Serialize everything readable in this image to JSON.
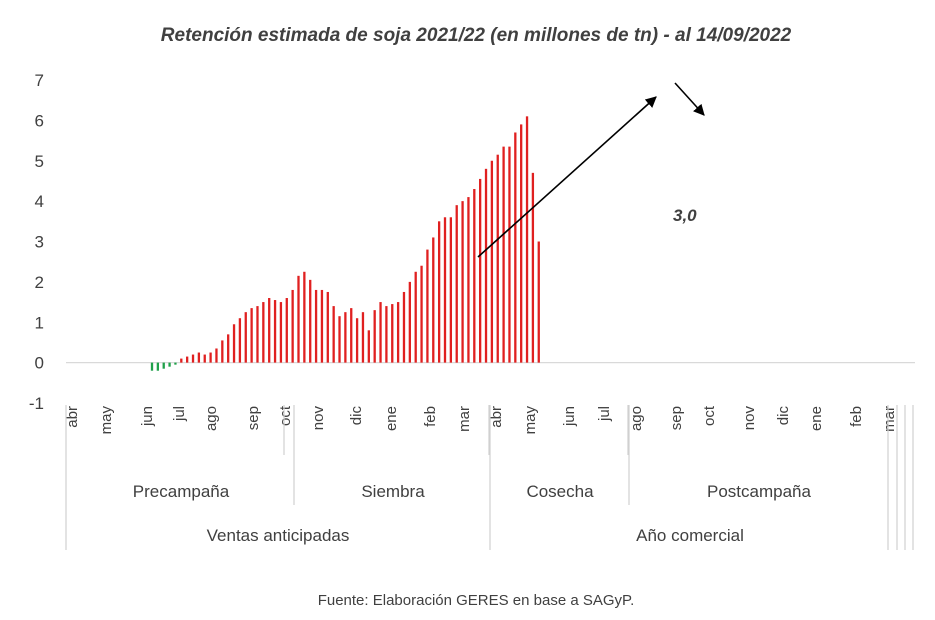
{
  "chart_data": {
    "type": "bar",
    "title": "Retención estimada de soja 2021/22 (en millones de tn) - al 14/09/2022",
    "xlabel": "",
    "ylabel": "",
    "ylim": [
      -1,
      7
    ],
    "yticks": [
      "-1",
      "0",
      "1",
      "2",
      "3",
      "4",
      "5",
      "6",
      "7"
    ],
    "grid": false,
    "months": [
      "abr",
      "may",
      "jun",
      "jul",
      "ago",
      "sep",
      "oct",
      "nov",
      "dic",
      "ene",
      "feb",
      "mar",
      "abr",
      "may",
      "jun",
      "jul",
      "ago",
      "sep",
      "oct",
      "nov",
      "dic",
      "ene",
      "feb",
      "mar"
    ],
    "phases": [
      "Precampaña",
      "Siembra",
      "Cosecha",
      "Postcampaña"
    ],
    "periods": [
      "Ventas anticipadas",
      "Año comercial"
    ],
    "series": [
      {
        "color_negative": "#1fa04a",
        "color_positive": "#e02020",
        "values": [
          -0.2,
          -0.2,
          -0.15,
          -0.1,
          -0.05,
          0.1,
          0.15,
          0.2,
          0.25,
          0.2,
          0.25,
          0.35,
          0.55,
          0.7,
          0.95,
          1.1,
          1.25,
          1.35,
          1.4,
          1.5,
          1.6,
          1.55,
          1.5,
          1.6,
          1.8,
          2.15,
          2.25,
          2.05,
          1.8,
          1.8,
          1.75,
          1.4,
          1.15,
          1.25,
          1.35,
          1.1,
          1.25,
          0.8,
          1.3,
          1.5,
          1.4,
          1.45,
          1.5,
          1.75,
          2.0,
          2.25,
          2.4,
          2.8,
          3.1,
          3.5,
          3.6,
          3.6,
          3.9,
          4.0,
          4.1,
          4.3,
          4.55,
          4.8,
          5.0,
          5.15,
          5.35,
          5.35,
          5.7,
          5.9,
          6.1,
          4.7,
          3.0
        ]
      }
    ],
    "annotations": [
      {
        "text": "3,0"
      }
    ]
  },
  "source": "Fuente: Elaboración GERES en base a SAGyP."
}
